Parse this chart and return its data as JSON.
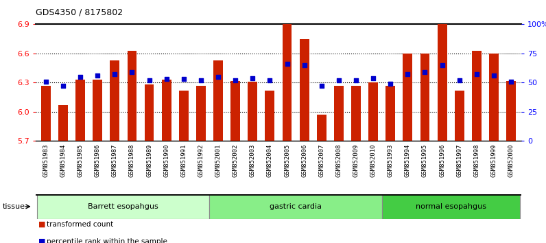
{
  "title": "GDS4350 / 8175802",
  "samples": [
    "GSM851983",
    "GSM851984",
    "GSM851985",
    "GSM851986",
    "GSM851987",
    "GSM851988",
    "GSM851989",
    "GSM851990",
    "GSM851991",
    "GSM851992",
    "GSM852001",
    "GSM852002",
    "GSM852003",
    "GSM852004",
    "GSM852005",
    "GSM852006",
    "GSM852007",
    "GSM852008",
    "GSM852009",
    "GSM852010",
    "GSM851993",
    "GSM851994",
    "GSM851995",
    "GSM851996",
    "GSM851997",
    "GSM851998",
    "GSM851999",
    "GSM852000"
  ],
  "bar_values": [
    6.27,
    6.07,
    6.33,
    6.33,
    6.53,
    6.63,
    6.28,
    6.33,
    6.22,
    6.27,
    6.53,
    6.32,
    6.31,
    6.22,
    6.9,
    6.75,
    5.97,
    6.27,
    6.27,
    6.3,
    6.27,
    6.6,
    6.6,
    6.9,
    6.22,
    6.63,
    6.6,
    6.32
  ],
  "percentile_values": [
    51,
    47,
    55,
    56,
    57,
    59,
    52,
    53,
    53,
    52,
    55,
    52,
    54,
    52,
    66,
    65,
    47,
    52,
    52,
    54,
    49,
    57,
    59,
    65,
    52,
    57,
    56,
    51
  ],
  "bar_color": "#cc2200",
  "dot_color": "#0000cc",
  "ylim_left": [
    5.7,
    6.9
  ],
  "ylim_right": [
    0,
    100
  ],
  "yticks_left": [
    5.7,
    6.0,
    6.3,
    6.6,
    6.9
  ],
  "yticks_right": [
    0,
    25,
    50,
    75,
    100
  ],
  "ytick_labels_right": [
    "0",
    "25",
    "50",
    "75",
    "100%"
  ],
  "grid_values": [
    6.0,
    6.3,
    6.6
  ],
  "groups": [
    {
      "label": "Barrett esopahgus",
      "start": 0,
      "end": 9,
      "color": "#ccffcc"
    },
    {
      "label": "gastric cardia",
      "start": 10,
      "end": 19,
      "color": "#88ee88"
    },
    {
      "label": "normal esopahgus",
      "start": 20,
      "end": 27,
      "color": "#44cc44"
    }
  ],
  "tissue_label": "tissue",
  "legend_red_label": "transformed count",
  "legend_blue_label": "percentile rank within the sample",
  "xtick_bg_color": "#cccccc",
  "chart_bg_color": "#ffffff",
  "bar_width": 0.55
}
